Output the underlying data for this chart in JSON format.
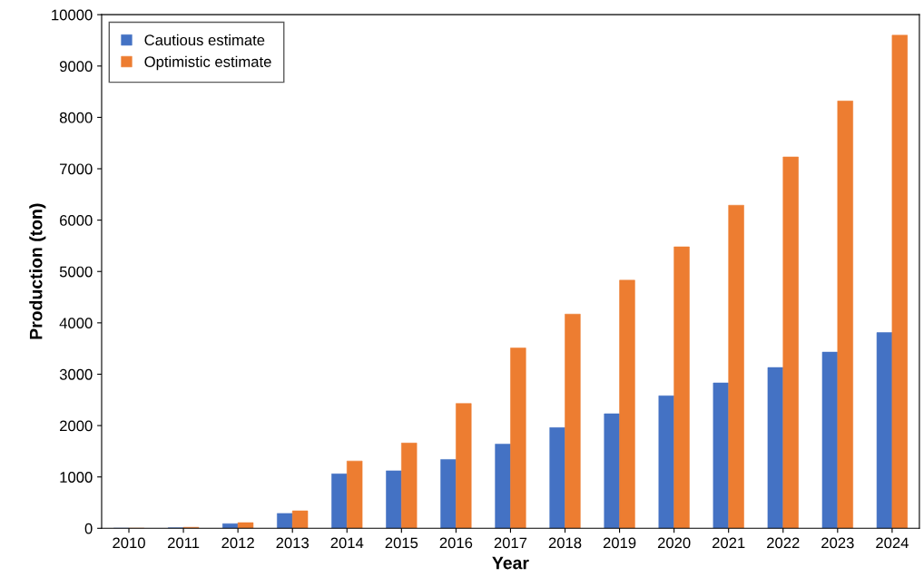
{
  "chart_data": {
    "type": "bar",
    "xlabel": "Year",
    "ylabel": "Production (ton)",
    "categories": [
      "2010",
      "2011",
      "2012",
      "2013",
      "2014",
      "2015",
      "2016",
      "2017",
      "2018",
      "2019",
      "2020",
      "2021",
      "2022",
      "2023",
      "2024"
    ],
    "series": [
      {
        "name": "Cautious estimate",
        "color": "#4472c4",
        "values": [
          0,
          10,
          90,
          290,
          1060,
          1120,
          1340,
          1640,
          1960,
          2230,
          2580,
          2830,
          3130,
          3430,
          3810
        ]
      },
      {
        "name": "Optimistic estimate",
        "color": "#ed7d31",
        "values": [
          0,
          20,
          110,
          340,
          1310,
          1660,
          2430,
          3510,
          4170,
          4830,
          5480,
          6290,
          7230,
          8320,
          9600
        ]
      }
    ],
    "ylim": [
      0,
      10000
    ],
    "yticks": [
      0,
      1000,
      2000,
      3000,
      4000,
      5000,
      6000,
      7000,
      8000,
      9000,
      10000
    ],
    "grid": false,
    "legend": "top left"
  }
}
